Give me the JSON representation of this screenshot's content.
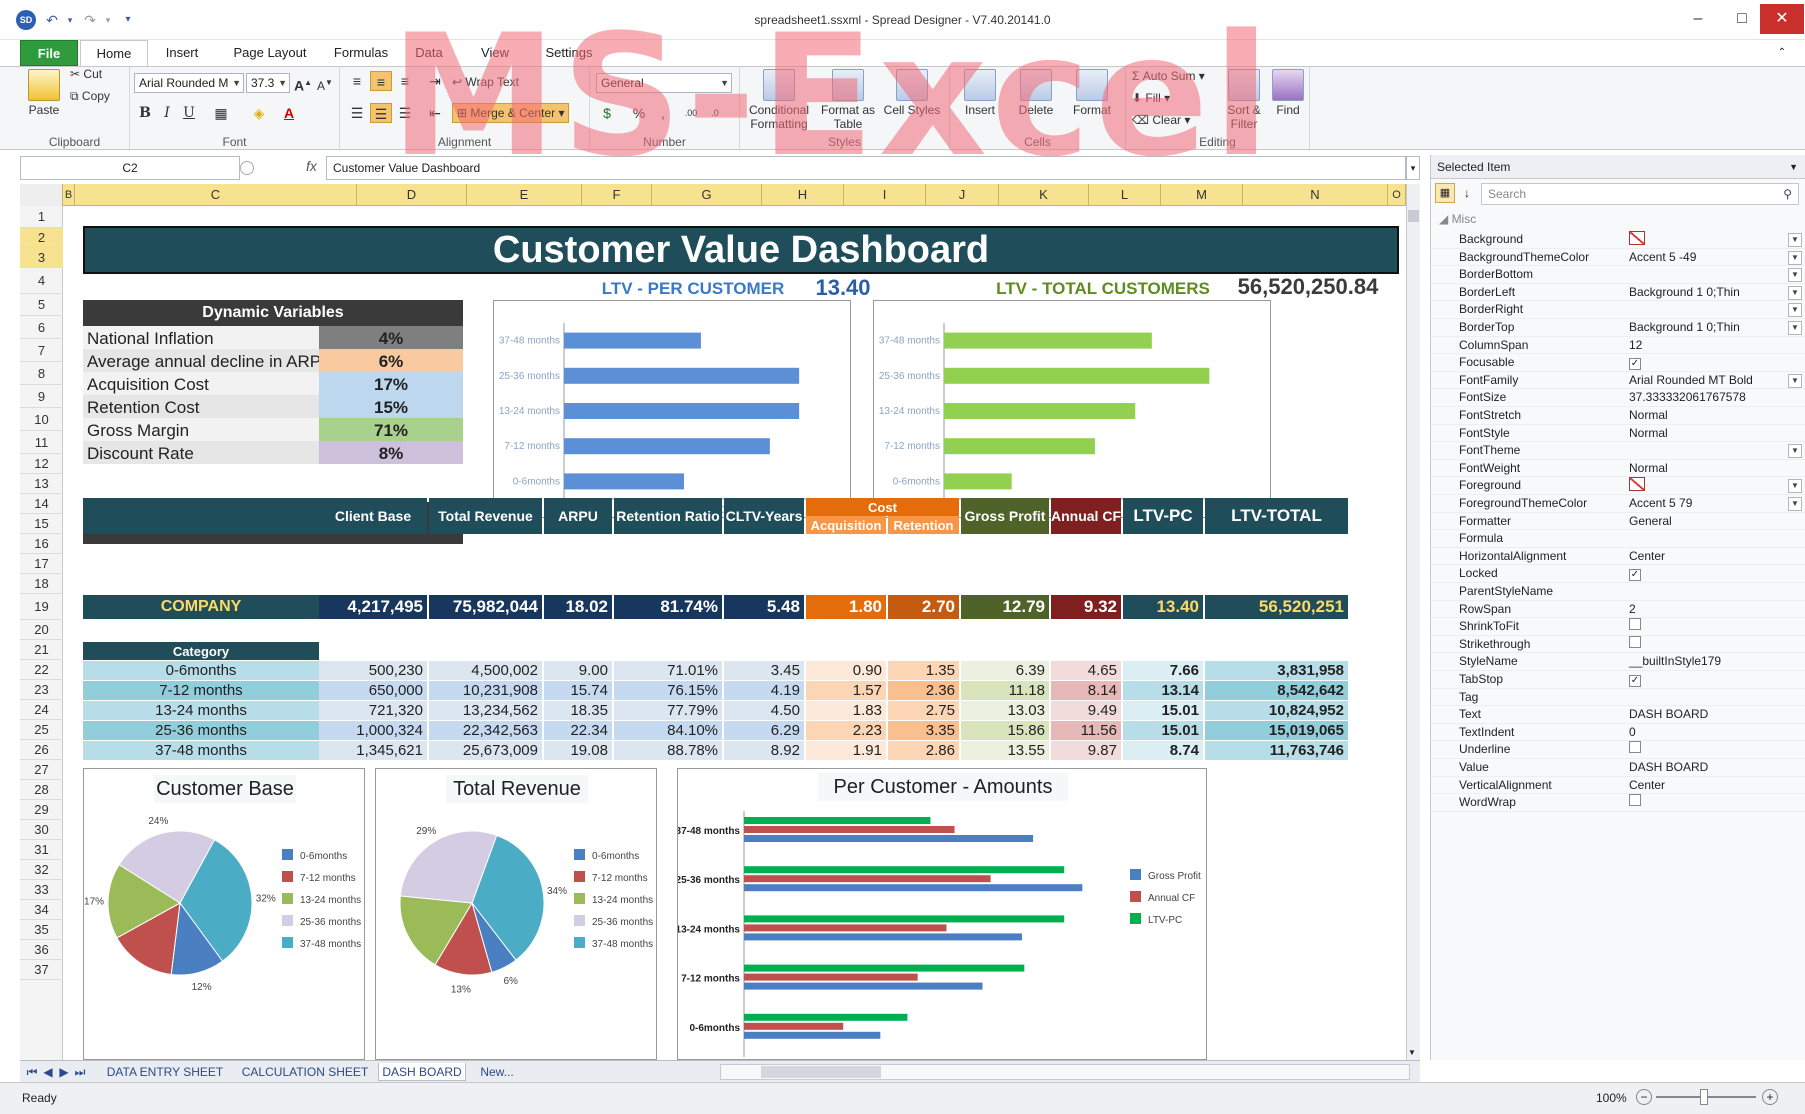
{
  "window": {
    "title": "spreadsheet1.ssxml - Spread Designer - V7.40.20141.0"
  },
  "watermark": "MS-Excel",
  "tabs": [
    {
      "label": "File"
    },
    {
      "label": "Home"
    },
    {
      "label": "Insert"
    },
    {
      "label": "Page Layout"
    },
    {
      "label": "Formulas"
    },
    {
      "label": "Data"
    },
    {
      "label": "View"
    },
    {
      "label": "Settings"
    }
  ],
  "ribbon": {
    "clipboard": {
      "label": "Clipboard",
      "paste": "Paste",
      "cut": "Cut",
      "copy": "Copy"
    },
    "font": {
      "label": "Font",
      "name": "Arial Rounded M",
      "size": "37.3"
    },
    "alignment": {
      "label": "Alignment",
      "wrap": "Wrap Text",
      "merge": "Merge & Center"
    },
    "number": {
      "label": "Number",
      "format": "General"
    },
    "styles": {
      "label": "Styles",
      "conditional": "Conditional Formatting",
      "format_table": "Format as Table",
      "cell_styles": "Cell Styles"
    },
    "cells": {
      "label": "Cells",
      "insert": "Insert",
      "delete": "Delete",
      "format": "Format"
    },
    "editing": {
      "label": "Editing",
      "autosum": "Auto Sum",
      "fill": "Fill",
      "clear": "Clear",
      "sort": "Sort & Filter",
      "find": "Find"
    }
  },
  "formula": {
    "cell": "C2",
    "value": "Customer Value Dashboard"
  },
  "columns": [
    "B",
    "C",
    "D",
    "E",
    "F",
    "G",
    "H",
    "I",
    "J",
    "K",
    "L",
    "M",
    "N",
    "O"
  ],
  "rows": [
    "1",
    "2",
    "3",
    "4",
    "5",
    "6",
    "7",
    "8",
    "9",
    "10",
    "11",
    "12",
    "13",
    "14",
    "15",
    "16",
    "17",
    "18",
    "19",
    "20",
    "21",
    "22",
    "23",
    "24",
    "25",
    "26",
    "27",
    "28",
    "29",
    "30",
    "31",
    "32",
    "33",
    "34",
    "35",
    "36",
    "37"
  ],
  "dashboard": {
    "title": "Customer Value Dashboard",
    "ltv_pc_label": "LTV - PER CUSTOMER",
    "ltv_pc_value": "13.40",
    "ltv_total_label": "LTV - TOTAL CUSTOMERS",
    "ltv_total_value": "56,520,250.84",
    "dynamic": {
      "title": "Dynamic Variables",
      "items": [
        {
          "label": "National Inflation",
          "value": "4%",
          "color": "#7f7f7f"
        },
        {
          "label": "Average annual decline in ARPU",
          "value": "6%",
          "color": "#f9c9a0"
        },
        {
          "label": "Acquisition Cost",
          "value": "17%",
          "color": "#bdd7ee"
        },
        {
          "label": "Retention Cost",
          "value": "15%",
          "color": "#bdd7ee"
        },
        {
          "label": "Gross Margin",
          "value": "71%",
          "color": "#a9d18e"
        },
        {
          "label": "Discount Rate",
          "value": "8%",
          "color": "#ccc0da"
        }
      ]
    },
    "table": {
      "headers": [
        "Client Base",
        "Total Revenue",
        "ARPU",
        "Retention Ratio",
        "CLTV-Years",
        "Cost",
        "Gross Profit",
        "Annual CF",
        "LTV-PC",
        "LTV-TOTAL"
      ],
      "cost_sub": [
        "Acquisition",
        "Retention"
      ],
      "company": {
        "label": "COMPANY",
        "values": [
          "4,217,495",
          "75,982,044",
          "18.02",
          "81.74%",
          "5.48",
          "1.80",
          "2.70",
          "12.79",
          "9.32",
          "13.40",
          "56,520,251"
        ]
      },
      "category_label": "Category",
      "rows": [
        {
          "cat": "0-6months",
          "values": [
            "500,230",
            "4,500,002",
            "9.00",
            "71.01%",
            "3.45",
            "0.90",
            "1.35",
            "6.39",
            "4.65",
            "7.66",
            "3,831,958"
          ]
        },
        {
          "cat": "7-12 months",
          "values": [
            "650,000",
            "10,231,908",
            "15.74",
            "76.15%",
            "4.19",
            "1.57",
            "2.36",
            "11.18",
            "8.14",
            "13.14",
            "8,542,642"
          ]
        },
        {
          "cat": "13-24 months",
          "values": [
            "721,320",
            "13,234,562",
            "18.35",
            "77.79%",
            "4.50",
            "1.83",
            "2.75",
            "13.03",
            "9.49",
            "15.01",
            "10,824,952"
          ]
        },
        {
          "cat": "25-36 months",
          "values": [
            "1,000,324",
            "22,342,563",
            "22.34",
            "84.10%",
            "6.29",
            "2.23",
            "3.35",
            "15.86",
            "11.56",
            "15.01",
            "15,019,065"
          ]
        },
        {
          "cat": "37-48 months",
          "values": [
            "1,345,621",
            "25,673,009",
            "19.08",
            "88.78%",
            "8.92",
            "1.91",
            "2.86",
            "13.55",
            "9.87",
            "8.74",
            "11,763,746"
          ]
        }
      ]
    }
  },
  "charts": {
    "chart_data": [
      {
        "type": "bar",
        "orientation": "horizontal",
        "categories": [
          "37-48 months",
          "25-36 months",
          "13-24 months",
          "7-12 months",
          "0-6months"
        ],
        "values": [
          8.74,
          15.01,
          15.01,
          13.14,
          7.66
        ],
        "xlim": [
          0,
          18
        ],
        "xticks": [
          "0",
          "2",
          "4",
          "6",
          "8",
          "10",
          "12",
          "14",
          "16",
          "18"
        ],
        "color": "#5b8fd6"
      },
      {
        "type": "bar",
        "orientation": "horizontal",
        "categories": [
          "37-48 months",
          "25-36 months",
          "13-24 months",
          "7-12 months",
          "0-6months"
        ],
        "values": [
          11763746,
          15019065,
          10824952,
          8542642,
          3831958
        ],
        "xlim": [
          0,
          18000000
        ],
        "xticks": [
          "0",
          "4000000",
          "8000000",
          "12000000",
          "16000000"
        ],
        "color": "#92d050"
      },
      {
        "type": "pie",
        "title": "Customer Base",
        "categories": [
          "0-6months",
          "7-12 months",
          "13-24 months",
          "25-36 months",
          "37-48 months"
        ],
        "values": [
          12,
          15,
          17,
          24,
          32
        ],
        "labels": [
          "12%",
          "",
          "17%",
          "24%",
          "32%"
        ],
        "colors": [
          "#4a7fc1",
          "#c0504d",
          "#9bbb59",
          "#d3cce3",
          "#4bacc6"
        ]
      },
      {
        "type": "pie",
        "title": "Total Revenue",
        "categories": [
          "0-6months",
          "7-12 months",
          "13-24 months",
          "25-36 months",
          "37-48 months"
        ],
        "values": [
          6,
          13,
          18,
          29,
          34
        ],
        "labels": [
          "6%",
          "13%",
          "",
          "29%",
          "34%"
        ],
        "colors": [
          "#4a7fc1",
          "#c0504d",
          "#9bbb59",
          "#d3cce3",
          "#4bacc6"
        ]
      },
      {
        "type": "bar",
        "orientation": "horizontal",
        "title": "Per Customer - Amounts",
        "categories": [
          "37-48 months",
          "25-36 months",
          "13-24 months",
          "7-12 months",
          "0-6months"
        ],
        "series": [
          {
            "name": "Gross Profit",
            "values": [
              13.55,
              15.86,
              13.03,
              11.18,
              6.39
            ],
            "color": "#4a7fc1"
          },
          {
            "name": "Annual CF",
            "values": [
              9.87,
              11.56,
              9.49,
              8.14,
              4.65
            ],
            "color": "#c0504d"
          },
          {
            "name": "LTV-PC",
            "values": [
              8.74,
              15.01,
              15.01,
              13.14,
              7.66
            ],
            "color": "#00b050"
          }
        ],
        "xlim": [
          0,
          18
        ]
      }
    ]
  },
  "panel": {
    "title": "Selected Item",
    "search": "Search",
    "section": "Misc",
    "props": [
      {
        "n": "Background",
        "v": "",
        "t": "swatch",
        "dd": true
      },
      {
        "n": "BackgroundThemeColor",
        "v": "Accent 5 -49",
        "dd": true
      },
      {
        "n": "BorderBottom",
        "v": "",
        "dd": true
      },
      {
        "n": "BorderLeft",
        "v": "Background 1 0;Thin",
        "dd": true
      },
      {
        "n": "BorderRight",
        "v": "",
        "dd": true
      },
      {
        "n": "BorderTop",
        "v": "Background 1 0;Thin",
        "dd": true
      },
      {
        "n": "ColumnSpan",
        "v": "12"
      },
      {
        "n": "Focusable",
        "v": "",
        "t": "check",
        "c": true
      },
      {
        "n": "FontFamily",
        "v": "Arial Rounded MT Bold",
        "dd": true
      },
      {
        "n": "FontSize",
        "v": "37.333332061767578"
      },
      {
        "n": "FontStretch",
        "v": "Normal"
      },
      {
        "n": "FontStyle",
        "v": "Normal"
      },
      {
        "n": "FontTheme",
        "v": "",
        "dd": true
      },
      {
        "n": "FontWeight",
        "v": "Normal"
      },
      {
        "n": "Foreground",
        "v": "",
        "t": "swatch",
        "dd": true
      },
      {
        "n": "ForegroundThemeColor",
        "v": "Accent 5 79",
        "dd": true
      },
      {
        "n": "Formatter",
        "v": "General"
      },
      {
        "n": "Formula",
        "v": ""
      },
      {
        "n": "HorizontalAlignment",
        "v": "Center"
      },
      {
        "n": "Locked",
        "v": "",
        "t": "check",
        "c": true
      },
      {
        "n": "ParentStyleName",
        "v": ""
      },
      {
        "n": "RowSpan",
        "v": "2"
      },
      {
        "n": "ShrinkToFit",
        "v": "",
        "t": "check",
        "c": false
      },
      {
        "n": "Strikethrough",
        "v": "",
        "t": "check",
        "c": false
      },
      {
        "n": "StyleName",
        "v": "__builtInStyle179"
      },
      {
        "n": "TabStop",
        "v": "",
        "t": "check",
        "c": true
      },
      {
        "n": "Tag",
        "v": ""
      },
      {
        "n": "Text",
        "v": "DASH BOARD"
      },
      {
        "n": "TextIndent",
        "v": "0"
      },
      {
        "n": "Underline",
        "v": "",
        "t": "check",
        "c": false
      },
      {
        "n": "Value",
        "v": "DASH BOARD"
      },
      {
        "n": "VerticalAlignment",
        "v": "Center"
      },
      {
        "n": "WordWrap",
        "v": "",
        "t": "check",
        "c": false
      }
    ]
  },
  "sheets": [
    "DATA ENTRY SHEET",
    "CALCULATION SHEET",
    "DASH BOARD",
    "New..."
  ],
  "status": {
    "ready": "Ready",
    "zoom": "100%"
  }
}
